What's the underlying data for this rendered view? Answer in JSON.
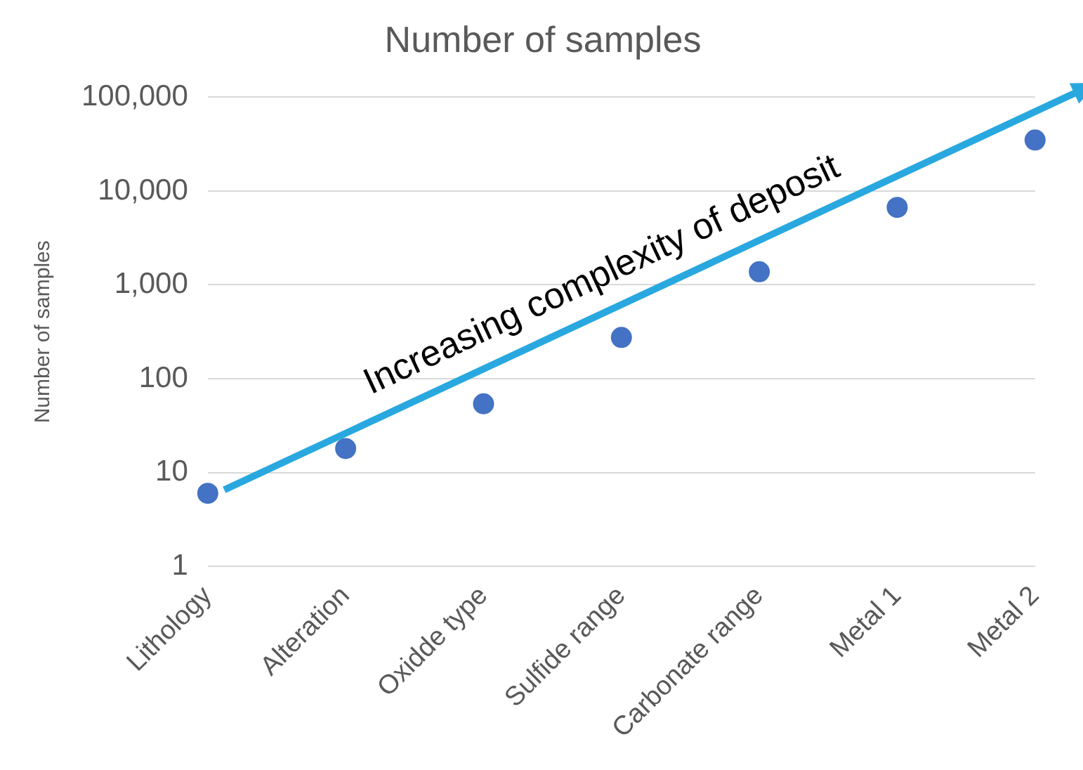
{
  "chart_data": {
    "type": "scatter",
    "title": "Number of samples",
    "ylabel": "Number of samples",
    "categories": [
      "Lithology",
      "Alteration",
      "Oxidde type",
      "Sulfide range",
      "Carbonate range",
      "Metal 1",
      "Metal 2"
    ],
    "values": [
      6,
      18,
      54,
      275,
      1380,
      6700,
      35000
    ],
    "color": "#4472c4",
    "marker": "circle",
    "log": "y",
    "ylim": [
      1,
      100000
    ],
    "yticks": [
      1,
      10,
      100,
      {
        "value": 1000,
        "label": "1,000"
      },
      {
        "value": 10000,
        "label": "10,000"
      },
      {
        "value": 100000,
        "label": "100,000"
      }
    ],
    "grid": "y",
    "legend": false,
    "annotations": [
      "Increasing complexity of deposit"
    ]
  }
}
